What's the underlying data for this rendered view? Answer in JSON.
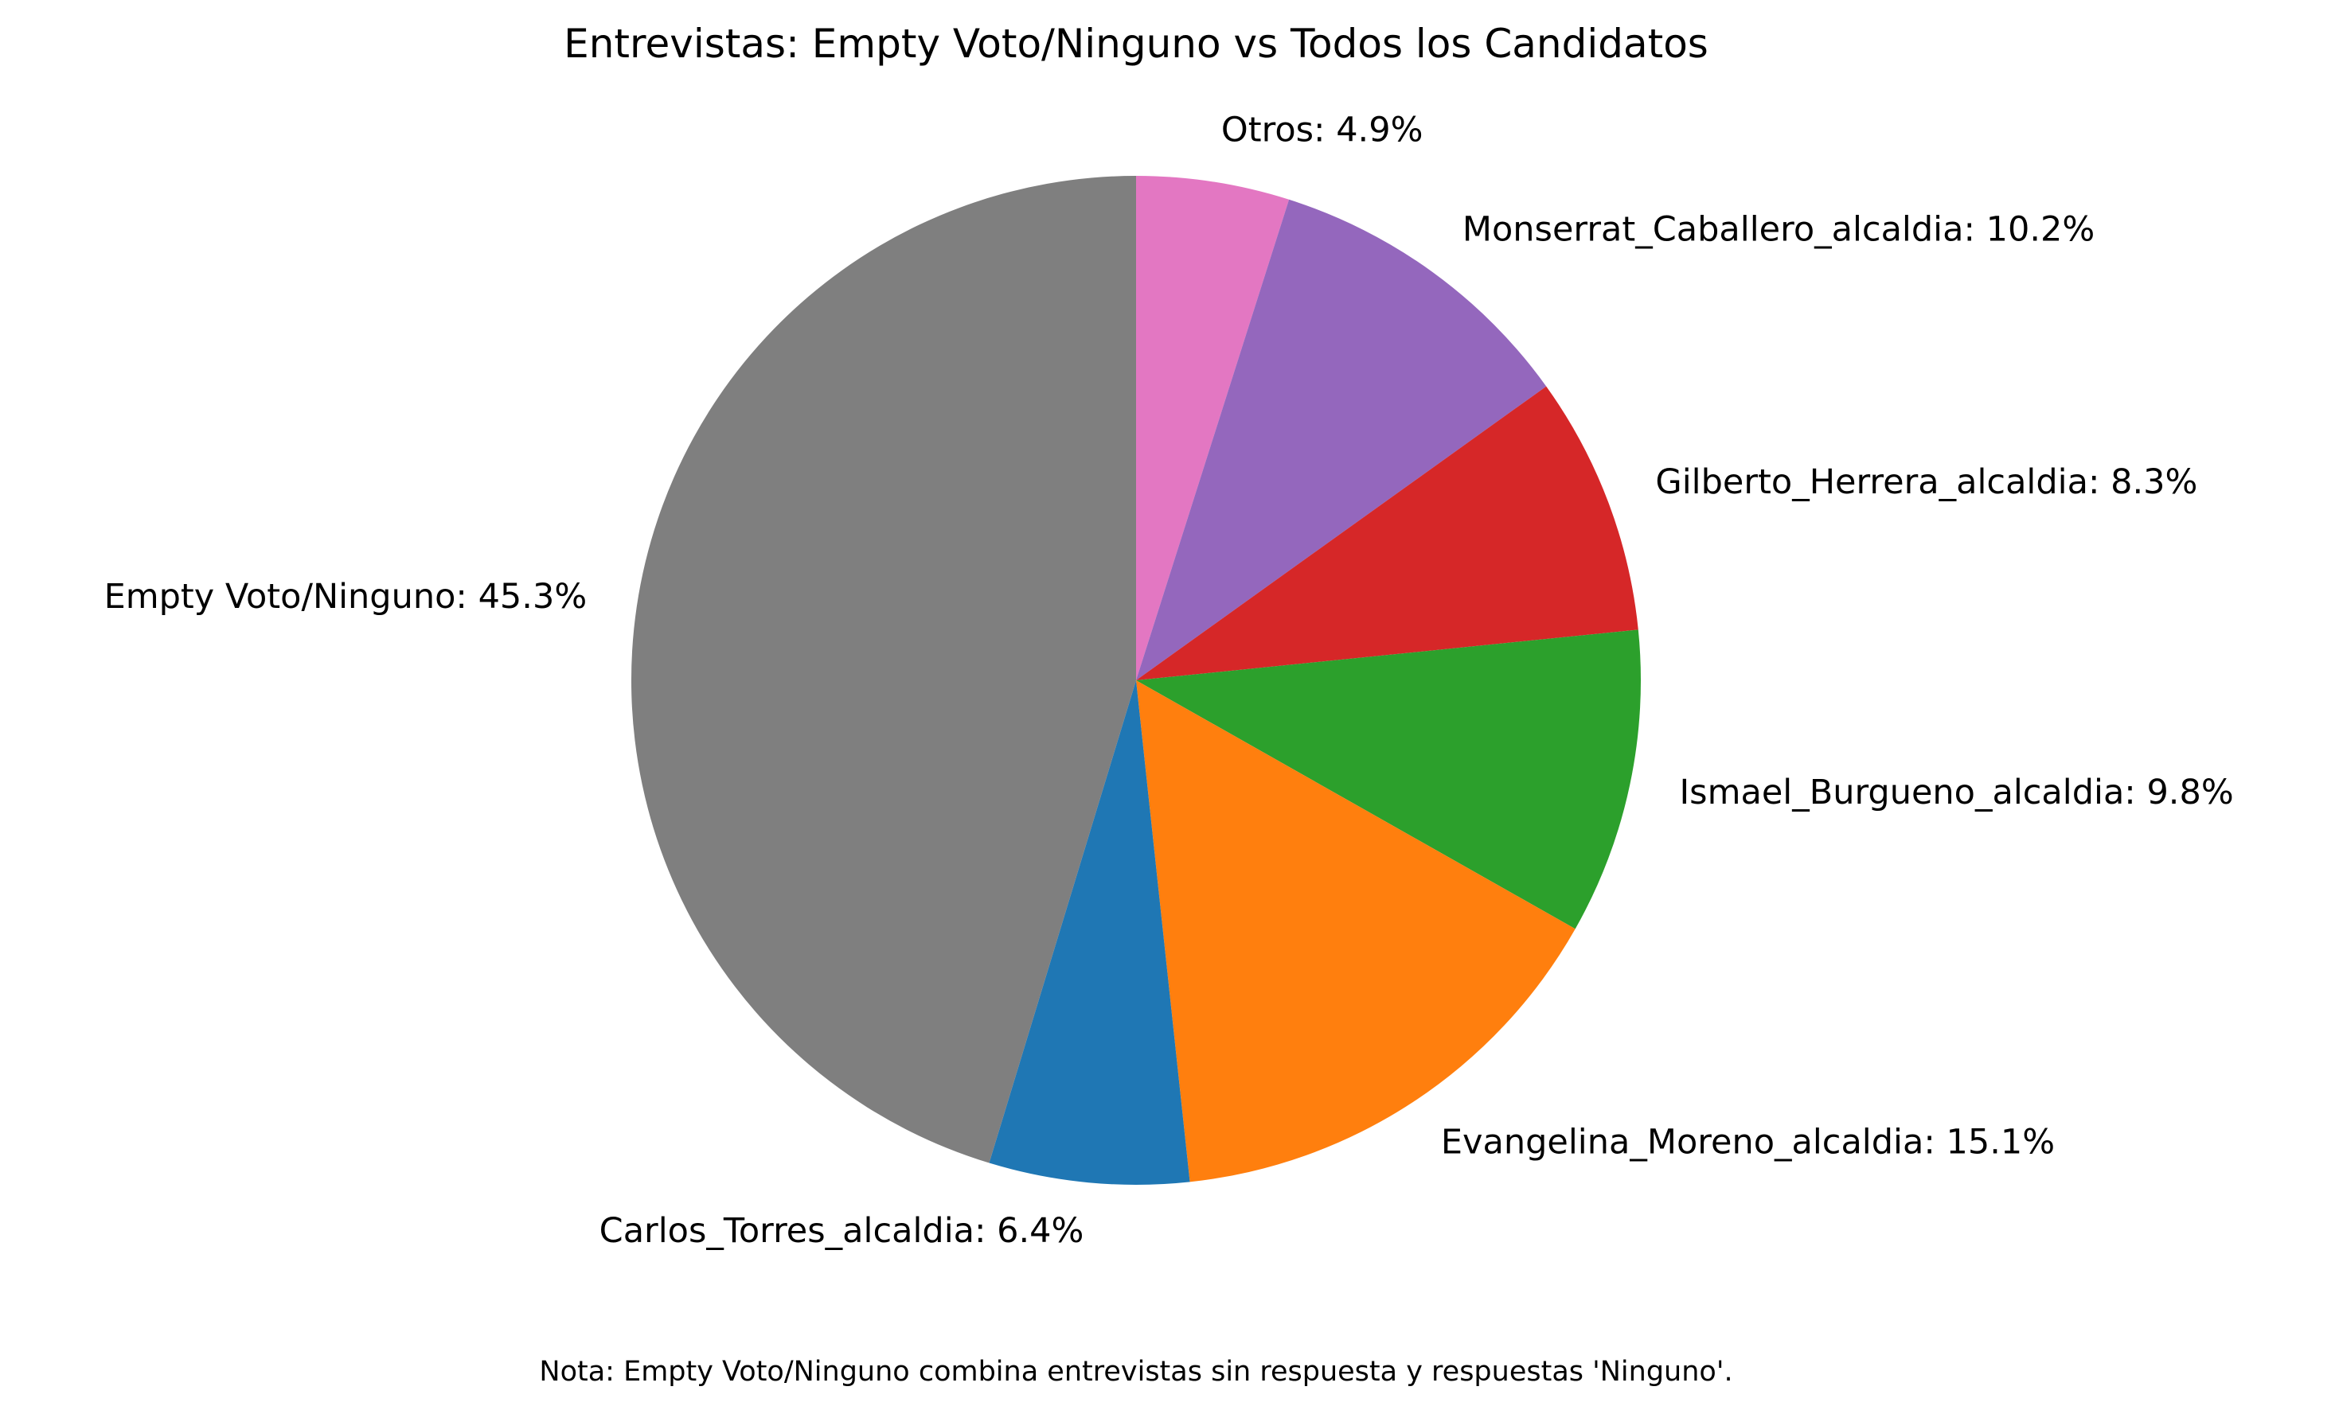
{
  "chart_data": {
    "type": "pie",
    "title": "Entrevistas: Empty Voto/Ninguno vs Todos los Candidatos",
    "note": "Nota: Empty Voto/Ninguno combina entrevistas sin respuesta y respuestas 'Ninguno'.",
    "start_angle_deg": 90,
    "direction": "clockwise",
    "slices": [
      {
        "label": "Otros",
        "value": 4.9,
        "display": "Otros: 4.9%",
        "color": "#e377c2"
      },
      {
        "label": "Monserrat_Caballero_alcaldia",
        "value": 10.2,
        "display": "Monserrat_Caballero_alcaldia: 10.2%",
        "color": "#9467bd"
      },
      {
        "label": "Gilberto_Herrera_alcaldia",
        "value": 8.3,
        "display": "Gilberto_Herrera_alcaldia: 8.3%",
        "color": "#d62728"
      },
      {
        "label": "Ismael_Burgueno_alcaldia",
        "value": 9.8,
        "display": "Ismael_Burgueno_alcaldia: 9.8%",
        "color": "#2ca02c"
      },
      {
        "label": "Evangelina_Moreno_alcaldia",
        "value": 15.1,
        "display": "Evangelina_Moreno_alcaldia: 15.1%",
        "color": "#ff7f0e"
      },
      {
        "label": "Carlos_Torres_alcaldia",
        "value": 6.4,
        "display": "Carlos_Torres_alcaldia: 6.4%",
        "color": "#1f77b4"
      },
      {
        "label": "Empty Voto/Ninguno",
        "value": 45.3,
        "display": "Empty Voto/Ninguno: 45.3%",
        "color": "#7f7f7f"
      }
    ]
  }
}
